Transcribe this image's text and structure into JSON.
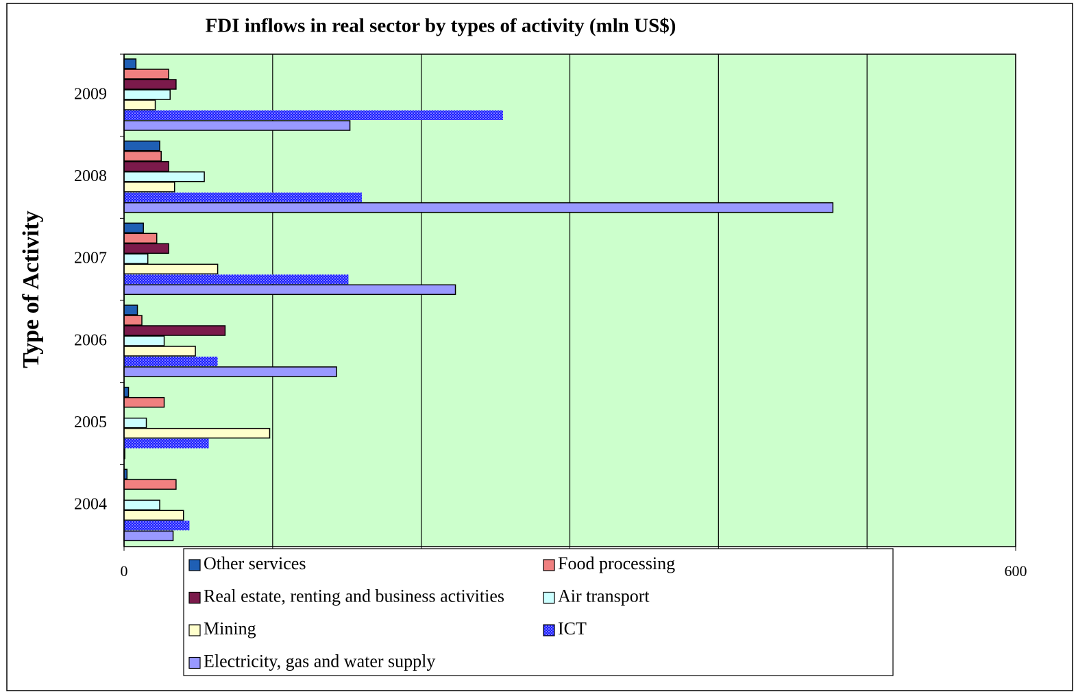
{
  "chart_data": {
    "type": "barh",
    "title": "FDI inflows in real sector by types of activity (mln  US$)",
    "y_label": "Type of Activity",
    "categories": [
      "2009",
      "2008",
      "2007",
      "2006",
      "2005",
      "2004"
    ],
    "series": [
      {
        "name": "Other services",
        "color": "#1f5fb4",
        "values": [
          8,
          24,
          13,
          9,
          3,
          2
        ]
      },
      {
        "name": "Food processing",
        "color": "#f08080",
        "values": [
          30,
          25,
          22,
          12,
          27,
          35
        ]
      },
      {
        "name": "Real estate, renting and business activities",
        "color": "#7b1a4b",
        "values": [
          35,
          30,
          30,
          68,
          0,
          0
        ]
      },
      {
        "name": "Air transport",
        "color": "#ccffff",
        "values": [
          31,
          54,
          16,
          27,
          15,
          24
        ]
      },
      {
        "name": "Mining",
        "color": "#ffffcc",
        "values": [
          21,
          34,
          63,
          48,
          98,
          40
        ]
      },
      {
        "name": "ICT",
        "color": "#1a1aff",
        "pattern": "dots",
        "values": [
          255,
          160,
          151,
          63,
          57,
          44
        ]
      },
      {
        "name": "Electricity, gas and water supply",
        "color": "#9999ff",
        "values": [
          152,
          477,
          223,
          143,
          0.5,
          33
        ]
      }
    ],
    "xlim": [
      0,
      600
    ],
    "xticks": [
      0,
      100,
      200,
      300,
      400,
      500,
      600
    ],
    "grid": true,
    "plot_background": "#ccffcc",
    "legend": "bottom"
  }
}
